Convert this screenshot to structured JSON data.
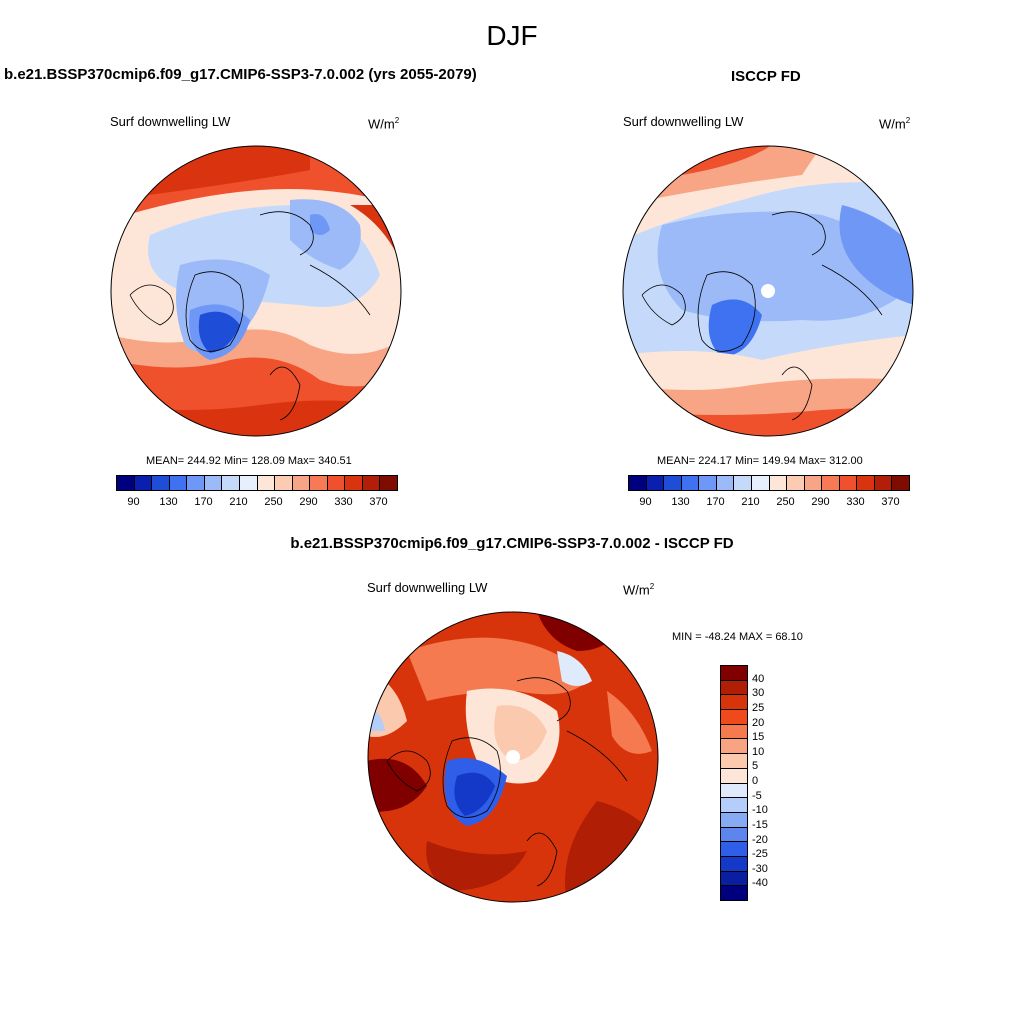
{
  "season": "DJF",
  "panels": {
    "model": {
      "title": "b.e21.BSSP370cmip6.f09_g17.CMIP6-SSP3-7.0.002 (yrs 2055-2079)",
      "variable": "Surf downwelling LW",
      "units_base": "W/m",
      "units_exp": "2",
      "stats": "MEAN= 244.92  Min= 128.09  Max= 340.51",
      "mean": 244.92,
      "min": 128.09,
      "max": 340.51
    },
    "obs": {
      "title": "ISCCP FD",
      "variable": "Surf downwelling LW",
      "units_base": "W/m",
      "units_exp": "2",
      "stats": "MEAN= 224.17  Min= 149.94  Max= 312.00",
      "mean": 224.17,
      "min": 149.94,
      "max": 312.0
    },
    "diff": {
      "title": "b.e21.BSSP370cmip6.f09_g17.CMIP6-SSP3-7.0.002 - ISCCP FD",
      "variable": "Surf downwelling LW",
      "units_base": "W/m",
      "units_exp": "2",
      "stats": "MIN = -48.24 MAX =  68.10",
      "min": -48.24,
      "max": 68.1
    }
  },
  "abs_colorbar": {
    "colors": [
      "#00007f",
      "#0a1fb0",
      "#1e4ed8",
      "#3f72f0",
      "#6f97f5",
      "#9cbaf8",
      "#c5dafb",
      "#e6f0fd",
      "#fde6d8",
      "#fbcbb2",
      "#f8a586",
      "#f57a55",
      "#ef512c",
      "#d9340f",
      "#b21e08",
      "#7f0c00"
    ],
    "tick_labels": [
      "90",
      "130",
      "170",
      "210",
      "250",
      "290",
      "330",
      "370"
    ]
  },
  "diff_colorbar": {
    "colors": [
      "#800000",
      "#b01e06",
      "#d8340c",
      "#f04a1c",
      "#f57a50",
      "#f8a382",
      "#fbc9ae",
      "#fde6d8",
      "#dfeafc",
      "#b5cef9",
      "#87aaf4",
      "#5c86ee",
      "#2f5fe8",
      "#1438c8",
      "#0a1ea0",
      "#00007f"
    ],
    "tick_labels": [
      "40",
      "30",
      "25",
      "20",
      "15",
      "10",
      "5",
      "0",
      "-5",
      "-10",
      "-15",
      "-20",
      "-25",
      "-30",
      "-40"
    ]
  }
}
